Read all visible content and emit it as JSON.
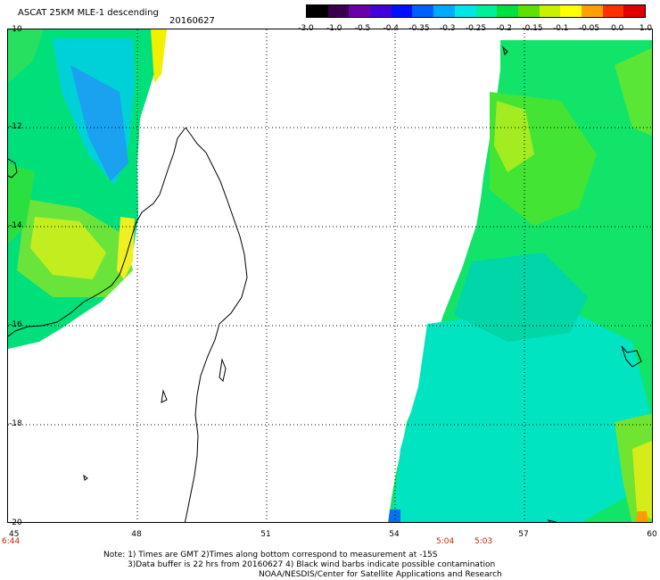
{
  "header": {
    "title": "ASCAT 25KM MLE-1 descending",
    "date": "20160627"
  },
  "colorbar": {
    "labels": [
      "-3.0",
      "-1.0",
      "-0.5",
      "-0.4",
      "-0.35",
      "-0.3",
      "-0.25",
      "-0.2",
      "-0.15",
      "-0.1",
      "-0.05",
      "0.0",
      "1.0"
    ],
    "colors": [
      "#000000",
      "#3a0050",
      "#6a00a8",
      "#4400d8",
      "#0010ff",
      "#0060ff",
      "#00aaff",
      "#00e6e6",
      "#00f09a",
      "#00e040",
      "#60e000",
      "#c8f000",
      "#ffff00",
      "#ffa000",
      "#ff3000",
      "#e00000"
    ]
  },
  "map": {
    "lat_labels": [
      "-10",
      "-12",
      "-14",
      "-16",
      "-18",
      "-20"
    ],
    "lon_labels": [
      "45",
      "48",
      "51",
      "54",
      "57",
      "60"
    ],
    "times": [
      "6:44",
      "5:04",
      "5:03"
    ]
  },
  "notes": {
    "line1": "Note: 1) Times are GMT 2)Times along bottom correspond to measurement at -15S",
    "line2": "3)Data buffer is 22 hrs from 20160627 4) Black wind barbs indicate possible contamination",
    "line3": "NOAA/NESDIS/Center for Satellite Applications and Research"
  }
}
